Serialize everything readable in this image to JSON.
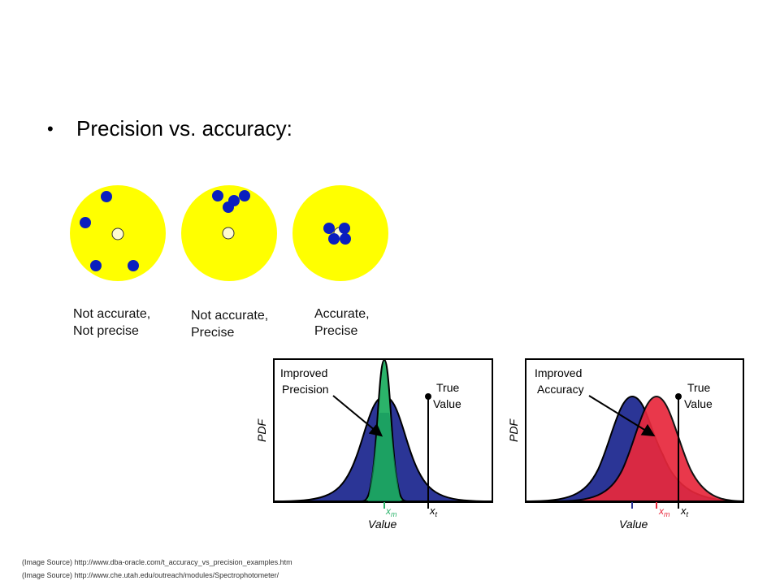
{
  "slide": {
    "bullet_text": "Precision vs. accuracy:"
  },
  "targets": [
    {
      "label_line1": "Not accurate,",
      "label_line2": "Not precise"
    },
    {
      "label_line1": "Not accurate,",
      "label_line2": "Precise"
    },
    {
      "label_line1": "Accurate,",
      "label_line2": "Precise"
    }
  ],
  "colors": {
    "target_fill": "#ffff00",
    "dot": "#0a1fbf",
    "center": "#fffbd0",
    "wide_curve": "#2b3596",
    "precise_curve": "#2bb36a",
    "accurate_curve": "#e8283c"
  },
  "plot_precision": {
    "annotation_line1": "Improved",
    "annotation_line2": "Precision",
    "true_line1": "True",
    "true_line2": "Value",
    "ylabel": "PDF",
    "xlabel": "Value",
    "xm": "x",
    "xm_sub": "m",
    "xt": "x",
    "xt_sub": "t"
  },
  "plot_accuracy": {
    "annotation_line1": "Improved",
    "annotation_line2": "Accuracy",
    "true_line1": "True",
    "true_line2": "Value",
    "ylabel": "PDF",
    "xlabel": "Value",
    "xm": "x",
    "xm_sub": "m",
    "xt": "x",
    "xt_sub": "t"
  },
  "sources": [
    "(Image Source) http://www.dba-oracle.com/t_accuracy_vs_precision_examples.htm",
    "(Image Source) http://www.che.utah.edu/outreach/modules/Spectrophotometer/"
  ]
}
